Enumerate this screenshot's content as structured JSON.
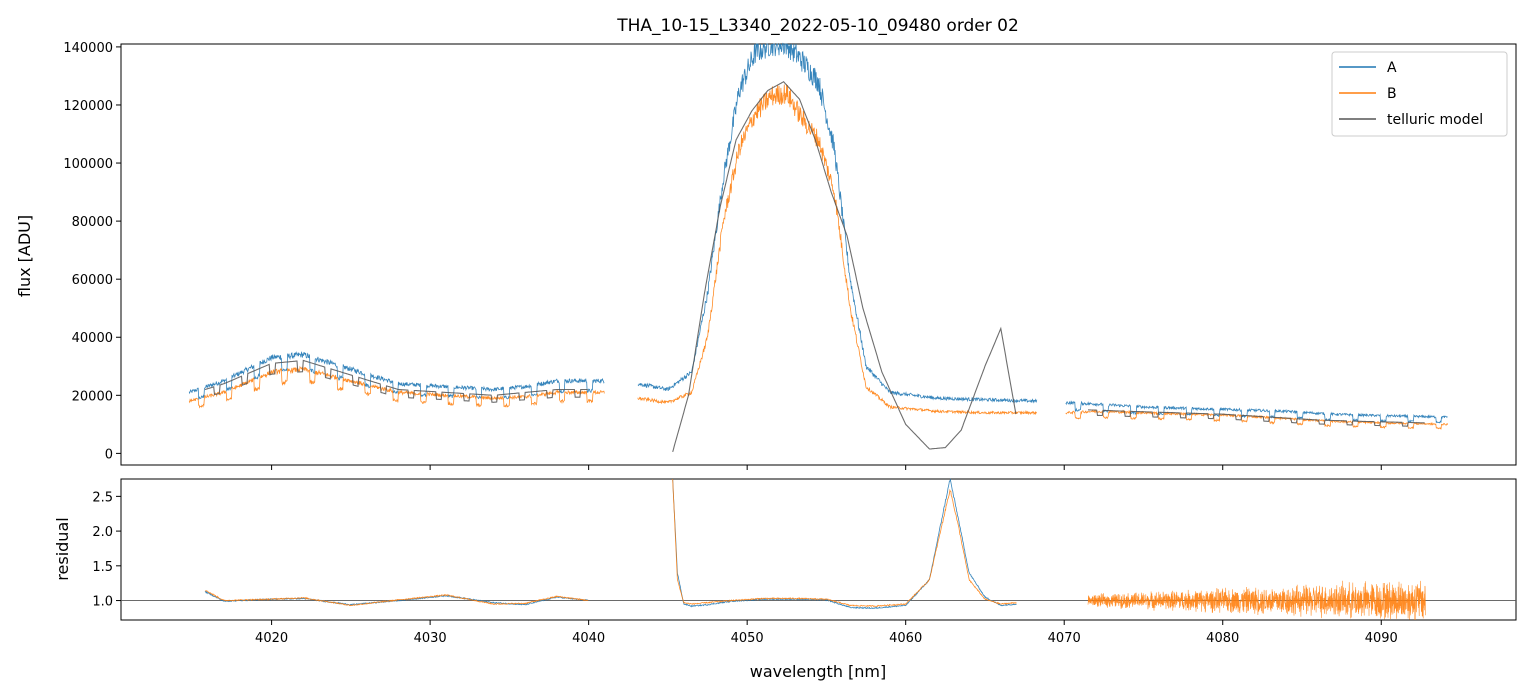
{
  "chart_data": [
    {
      "type": "line",
      "panel": "top",
      "title": "THA_10-15_L3340_2022-05-10_09480  order 02",
      "xlabel": "",
      "ylabel": "flux [ADU]",
      "xlim": [
        4010.5,
        4098.5
      ],
      "ylim": [
        -4000,
        141000
      ],
      "yticks": [
        0,
        20000,
        40000,
        60000,
        80000,
        100000,
        120000,
        140000
      ],
      "ytick_labels": [
        "0",
        "20000",
        "40000",
        "60000",
        "80000",
        "100000",
        "120000",
        "140000"
      ],
      "xticks": [
        4020,
        4030,
        4040,
        4050,
        4060,
        4070,
        4080,
        4090
      ],
      "legend": {
        "position": "top-right",
        "entries": [
          "A",
          "B",
          "telluric model"
        ]
      },
      "series": [
        {
          "name": "A",
          "color": "#1f77b4",
          "segments": [
            {
              "x": [
                4014.8,
                4017,
                4020,
                4022,
                4025,
                4028,
                4031,
                4034,
                4036,
                4038,
                4041.0
              ],
              "y": [
                21000,
                25000,
                33000,
                34000,
                29000,
                24000,
                23000,
                22000,
                23000,
                25000,
                25000
              ]
            },
            {
              "x": [
                4043.1,
                4045,
                4046.5,
                4047.5,
                4048.5,
                4049.5,
                4050.5,
                4051.5,
                4052.5,
                4053.5,
                4054.5,
                4055.5,
                4056.5,
                4057.5,
                4059,
                4062,
                4065,
                4068.3
              ],
              "y": [
                24000,
                22000,
                28000,
                55000,
                95000,
                125000,
                138000,
                141000,
                141000,
                135000,
                128000,
                105000,
                60000,
                30000,
                21000,
                19000,
                18500,
                18000
              ]
            },
            {
              "x": [
                4070.1,
                4072,
                4075,
                4078,
                4081,
                4084,
                4087,
                4090,
                4094.2
              ],
              "y": [
                17500,
                17000,
                16000,
                15500,
                15000,
                14500,
                13500,
                13000,
                12500
              ]
            }
          ]
        },
        {
          "name": "B",
          "color": "#ff7f0e",
          "segments": [
            {
              "x": [
                4014.8,
                4017,
                4020,
                4022,
                4025,
                4028,
                4031,
                4034,
                4036,
                4038,
                4041.0
              ],
              "y": [
                18000,
                21000,
                28000,
                29000,
                25000,
                21000,
                20000,
                19000,
                19500,
                21000,
                21000
              ]
            },
            {
              "x": [
                4043.1,
                4045,
                4046.5,
                4047.5,
                4048.5,
                4049.5,
                4050.5,
                4051.5,
                4052.5,
                4053.5,
                4054.5,
                4055.5,
                4056.5,
                4057.5,
                4059,
                4062,
                4065,
                4068.3
              ],
              "y": [
                19000,
                17500,
                21000,
                40000,
                80000,
                105000,
                117000,
                123000,
                124000,
                115000,
                108000,
                90000,
                50000,
                23000,
                16000,
                14500,
                14000,
                14000
              ]
            },
            {
              "x": [
                4070.1,
                4072,
                4075,
                4078,
                4081,
                4084,
                4087,
                4090,
                4094.2
              ],
              "y": [
                14000,
                14500,
                14000,
                13500,
                13000,
                12000,
                11000,
                10500,
                10000
              ]
            }
          ]
        },
        {
          "name": "telluric model",
          "color": "#555555",
          "segments": [
            {
              "x": [
                4015.8,
                4017,
                4020,
                4022,
                4025,
                4028,
                4031,
                4034,
                4036,
                4038,
                4040.0
              ],
              "y": [
                22000,
                24000,
                31000,
                32000,
                27000,
                22000,
                21000,
                20000,
                21000,
                22000,
                22000
              ]
            },
            {
              "x": [
                4045.3,
                4046.3,
                4047.3,
                4048.3,
                4049.3,
                4050.3,
                4051.3,
                4052.3,
                4053.3,
                4054.3,
                4055.3,
                4056.3,
                4057.3,
                4058.5,
                4060,
                4061.5,
                4062.5,
                4063.5,
                4065,
                4066,
                4067.0
              ],
              "y": [
                500,
                20000,
                55000,
                85000,
                108000,
                118000,
                125000,
                128000,
                122000,
                108000,
                90000,
                75000,
                50000,
                28000,
                10000,
                1500,
                2000,
                8000,
                30000,
                43000,
                12000
              ]
            },
            {
              "x": [
                4071.5,
                4074,
                4077,
                4080,
                4083,
                4086,
                4089,
                4092.8
              ],
              "y": [
                15000,
                14500,
                14000,
                13500,
                12500,
                11500,
                11000,
                10500
              ]
            }
          ]
        }
      ]
    },
    {
      "type": "line",
      "panel": "bottom",
      "title": "",
      "xlabel": "wavelength [nm]",
      "ylabel": "residual",
      "xlim": [
        4010.5,
        4098.5
      ],
      "ylim": [
        0.72,
        2.75
      ],
      "yticks": [
        1.0,
        1.5,
        2.0,
        2.5
      ],
      "ytick_labels": [
        "1.0",
        "1.5",
        "2.0",
        "2.5"
      ],
      "xticks": [
        4020,
        4030,
        4040,
        4050,
        4060,
        4070,
        4080,
        4090
      ],
      "xtick_labels": [
        "4020",
        "4030",
        "4040",
        "4050",
        "4060",
        "4070",
        "4080",
        "4090"
      ],
      "reference_line": 1.0,
      "series": [
        {
          "name": "A",
          "color": "#1f77b4",
          "segments": [
            {
              "x": [
                4015.8,
                4017,
                4020,
                4022,
                4025,
                4028,
                4031,
                4034,
                4036,
                4038,
                4040.0
              ],
              "y": [
                1.13,
                0.99,
                1.02,
                1.03,
                0.94,
                1.0,
                1.07,
                0.97,
                0.94,
                1.05,
                1.0
              ]
            },
            {
              "x": [
                4045.3,
                4045.6,
                4046,
                4046.5,
                4047.5,
                4049,
                4051,
                4053,
                4055,
                4056.5,
                4058,
                4060,
                4061.5,
                4062.3,
                4062.8,
                4063.3,
                4064,
                4065,
                4066,
                4067.0
              ],
              "y": [
                2.75,
                1.4,
                0.95,
                0.92,
                0.94,
                0.99,
                1.02,
                1.02,
                1.01,
                0.9,
                0.89,
                0.93,
                1.3,
                2.2,
                2.75,
                2.2,
                1.4,
                1.05,
                0.93,
                0.95
              ]
            }
          ]
        },
        {
          "name": "B",
          "color": "#ff7f0e",
          "segments": [
            {
              "x": [
                4015.8,
                4017,
                4020,
                4022,
                4025,
                4028,
                4031,
                4034,
                4036,
                4038,
                4040.0
              ],
              "y": [
                1.15,
                1.0,
                1.02,
                1.04,
                0.93,
                1.01,
                1.08,
                0.95,
                0.96,
                1.06,
                1.0
              ]
            },
            {
              "x": [
                4045.3,
                4045.6,
                4046,
                4046.5,
                4047.5,
                4049,
                4051,
                4053,
                4055,
                4056.5,
                4058,
                4060,
                4061.5,
                4062.3,
                4062.8,
                4063.3,
                4064,
                4065,
                4066,
                4067.0
              ],
              "y": [
                2.75,
                1.3,
                0.97,
                0.95,
                0.97,
                1.0,
                1.03,
                1.03,
                1.02,
                0.93,
                0.92,
                0.95,
                1.3,
                2.1,
                2.6,
                2.1,
                1.3,
                1.02,
                0.95,
                0.97
              ]
            }
          ]
        }
      ],
      "noise_band": {
        "series": "B",
        "x": [
          4071.5,
          4092.8
        ],
        "center": 1.0,
        "amplitude_start": 0.1,
        "amplitude_end": 0.35
      }
    }
  ]
}
